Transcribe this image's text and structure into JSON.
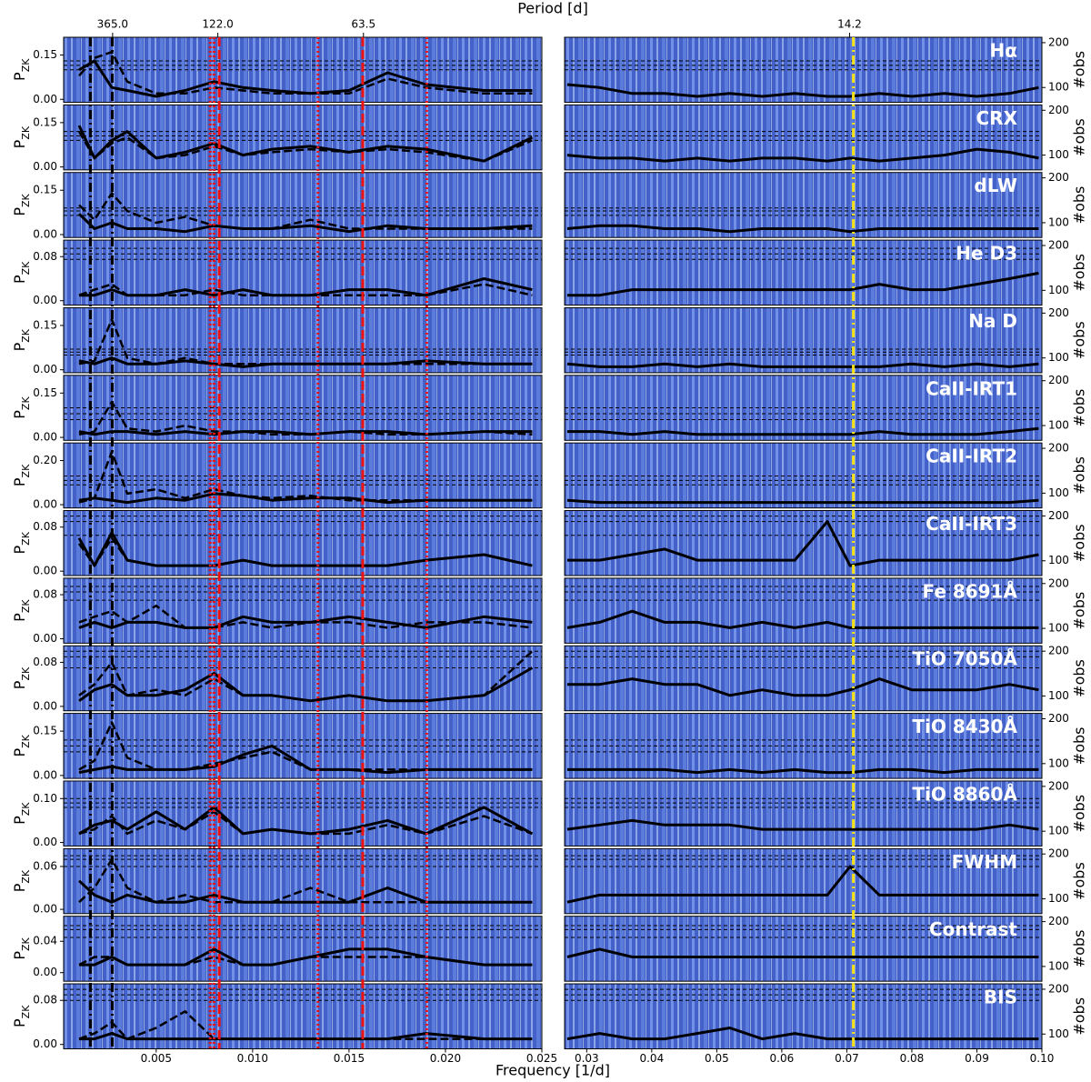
{
  "chart_data": {
    "type": "line",
    "x_label": "Frequency [1/d]",
    "top_label": "Period [d]",
    "y_label_main": "P",
    "y_label_sub": "ZK",
    "y2_label": "#obs",
    "left_xlim": [
      0.0002,
      0.025
    ],
    "right_xlim": [
      0.0266,
      0.1
    ],
    "left_xticks": [
      0.005,
      {
        "value": 0.01,
        "label": "0.010"
      },
      0.015,
      {
        "value": 0.02,
        "label": "0.020"
      },
      0.025
    ],
    "right_xticks": [
      0.03,
      0.04,
      0.05,
      0.06,
      0.07,
      0.08,
      0.09,
      {
        "value": 0.1,
        "label": "0.10"
      }
    ],
    "period_ticks": [
      {
        "value": 365,
        "label": "365.0"
      },
      {
        "value": 122,
        "label": "122.0"
      },
      63.5,
      14.2
    ],
    "y2lim": [
      67,
      212
    ],
    "y2ticks": [
      100,
      200
    ],
    "line_color": "#000000",
    "vlines": [
      {
        "x": 0.00159,
        "color": "#000000",
        "style": "dashdot"
      },
      {
        "x": 0.00272,
        "color": "#000000",
        "style": "dashdot"
      },
      {
        "x": 0.0078,
        "color": "#ee1111",
        "style": "dotted"
      },
      {
        "x": 0.008,
        "color": "#ee1111",
        "style": "dotted"
      },
      {
        "x": 0.00827,
        "color": "#ee1111",
        "style": "dashed"
      },
      {
        "x": 0.01339,
        "color": "#ee1111",
        "style": "dotted"
      },
      {
        "x": 0.01571,
        "color": "#ee1111",
        "style": "dashed"
      },
      {
        "x": 0.01903,
        "color": "#ee1111",
        "style": "dotted"
      },
      {
        "x": 0.071,
        "color": "#f2e01a",
        "style": "dashdot"
      }
    ],
    "left_x": [
      0.001,
      0.0018,
      0.0027,
      0.0035,
      0.005,
      0.0065,
      0.008,
      0.0095,
      0.011,
      0.013,
      0.015,
      0.017,
      0.019,
      0.022,
      0.0245
    ],
    "right_x": [
      0.027,
      0.032,
      0.037,
      0.042,
      0.047,
      0.052,
      0.057,
      0.062,
      0.067,
      0.0705,
      0.075,
      0.08,
      0.085,
      0.09,
      0.095,
      0.0995
    ],
    "panels": [
      {
        "label": "Hα",
        "ylim": [
          -0.01,
          0.21
        ],
        "yticks": [
          {
            "value": 0,
            "label": "0.00"
          },
          0.15
        ],
        "fap": [
          0.13,
          0.115,
          0.1
        ],
        "left_solid": [
          0.1,
          0.13,
          0.04,
          0.03,
          0.01,
          0.03,
          0.06,
          0.04,
          0.03,
          0.02,
          0.03,
          0.09,
          0.05,
          0.03,
          0.03
        ],
        "left_dashed": [
          0.08,
          0.14,
          0.16,
          0.06,
          0.02,
          0.02,
          0.04,
          0.03,
          0.02,
          0.02,
          0.02,
          0.07,
          0.04,
          0.02,
          0.02
        ],
        "right_solid": [
          0.05,
          0.04,
          0.02,
          0.02,
          0.01,
          0.02,
          0.01,
          0.02,
          0.01,
          0.01,
          0.02,
          0.01,
          0.02,
          0.01,
          0.02,
          0.04
        ]
      },
      {
        "label": "CRX",
        "ylim": [
          -0.01,
          0.21
        ],
        "yticks": [
          {
            "value": 0,
            "label": "0.00"
          },
          0.15
        ],
        "fap": [
          0.12,
          0.105,
          0.09
        ],
        "left_solid": [
          0.14,
          0.03,
          0.09,
          0.12,
          0.03,
          0.05,
          0.08,
          0.04,
          0.06,
          0.07,
          0.05,
          0.07,
          0.06,
          0.02,
          0.1
        ],
        "left_dashed": [
          0.12,
          0.03,
          0.08,
          0.1,
          0.03,
          0.04,
          0.07,
          0.04,
          0.05,
          0.06,
          0.05,
          0.06,
          0.05,
          0.02,
          0.09
        ],
        "right_solid": [
          0.04,
          0.03,
          0.03,
          0.02,
          0.03,
          0.02,
          0.03,
          0.03,
          0.02,
          0.03,
          0.02,
          0.03,
          0.04,
          0.06,
          0.05,
          0.03
        ]
      },
      {
        "label": "dLW",
        "ylim": [
          -0.01,
          0.21
        ],
        "yticks": [
          {
            "value": 0,
            "label": "0.00"
          },
          0.15
        ],
        "fap": [
          0.09,
          0.08,
          0.065
        ],
        "left_solid": [
          0.07,
          0.02,
          0.04,
          0.02,
          0.02,
          0.01,
          0.03,
          0.02,
          0.02,
          0.03,
          0.01,
          0.03,
          0.02,
          0.02,
          0.03
        ],
        "left_dashed": [
          0.1,
          0.05,
          0.14,
          0.08,
          0.04,
          0.06,
          0.03,
          0.02,
          0.02,
          0.05,
          0.02,
          0.02,
          0.02,
          0.02,
          0.02
        ],
        "right_solid": [
          0.02,
          0.03,
          0.03,
          0.02,
          0.02,
          0.01,
          0.02,
          0.02,
          0.02,
          0.01,
          0.02,
          0.02,
          0.02,
          0.02,
          0.02,
          0.02
        ]
      },
      {
        "label": "He D3",
        "ylim": [
          -0.008,
          0.11
        ],
        "yticks": [
          {
            "value": 0,
            "label": "0.00"
          },
          0.08
        ],
        "fap": [
          0.095,
          0.085,
          0.075
        ],
        "left_solid": [
          0.01,
          0.01,
          0.02,
          0.01,
          0.01,
          0.02,
          0.01,
          0.02,
          0.01,
          0.01,
          0.02,
          0.02,
          0.01,
          0.04,
          0.02
        ],
        "left_dashed": [
          0.01,
          0.02,
          0.03,
          0.01,
          0.01,
          0.01,
          0.02,
          0.01,
          0.01,
          0.01,
          0.01,
          0.01,
          0.01,
          0.03,
          0.01
        ],
        "right_solid": [
          0.01,
          0.01,
          0.02,
          0.02,
          0.02,
          0.02,
          0.02,
          0.02,
          0.02,
          0.02,
          0.03,
          0.02,
          0.02,
          0.03,
          0.04,
          0.05
        ]
      },
      {
        "label": "Na D",
        "ylim": [
          -0.01,
          0.21
        ],
        "yticks": [
          {
            "value": 0,
            "label": "0.00"
          },
          0.15
        ],
        "fap": [
          0.07,
          0.06,
          0.05
        ],
        "left_solid": [
          0.03,
          0.02,
          0.04,
          0.02,
          0.02,
          0.03,
          0.02,
          0.01,
          0.02,
          0.02,
          0.02,
          0.02,
          0.03,
          0.02,
          0.02
        ],
        "left_dashed": [
          0.02,
          0.03,
          0.17,
          0.04,
          0.02,
          0.04,
          0.02,
          0.02,
          0.02,
          0.02,
          0.02,
          0.02,
          0.02,
          0.02,
          0.02
        ],
        "right_solid": [
          0.02,
          0.01,
          0.01,
          0.02,
          0.01,
          0.02,
          0.01,
          0.01,
          0.01,
          0.01,
          0.01,
          0.02,
          0.01,
          0.02,
          0.01,
          0.02
        ]
      },
      {
        "label": "CaII-IRT1",
        "ylim": [
          -0.01,
          0.21
        ],
        "yticks": [
          {
            "value": 0,
            "label": "0.00"
          },
          0.15
        ],
        "fap": [
          0.1,
          0.08,
          0.06
        ],
        "left_solid": [
          0.02,
          0.01,
          0.02,
          0.02,
          0.01,
          0.02,
          0.01,
          0.02,
          0.02,
          0.01,
          0.02,
          0.02,
          0.01,
          0.02,
          0.02
        ],
        "left_dashed": [
          0.01,
          0.02,
          0.12,
          0.03,
          0.02,
          0.04,
          0.02,
          0.02,
          0.01,
          0.01,
          0.02,
          0.01,
          0.01,
          0.02,
          0.01
        ],
        "right_solid": [
          0.02,
          0.02,
          0.01,
          0.02,
          0.01,
          0.01,
          0.01,
          0.01,
          0.01,
          0.01,
          0.02,
          0.01,
          0.01,
          0.01,
          0.02,
          0.03
        ]
      },
      {
        "label": "CaII-IRT2",
        "ylim": [
          -0.015,
          0.28
        ],
        "yticks": [
          {
            "value": 0,
            "label": "0.00"
          },
          {
            "value": 0.2,
            "label": "0.20"
          }
        ],
        "fap": [
          0.13,
          0.11,
          0.09
        ],
        "left_solid": [
          0.02,
          0.03,
          0.02,
          0.01,
          0.03,
          0.02,
          0.05,
          0.04,
          0.02,
          0.03,
          0.03,
          0.01,
          0.02,
          0.02,
          0.02
        ],
        "left_dashed": [
          0.01,
          0.03,
          0.24,
          0.05,
          0.07,
          0.03,
          0.07,
          0.04,
          0.03,
          0.04,
          0.02,
          0.02,
          0.02,
          0.02,
          0.02
        ],
        "right_solid": [
          0.02,
          0.01,
          0.01,
          0.01,
          0.01,
          0.01,
          0.01,
          0.01,
          0.01,
          0.01,
          0.01,
          0.01,
          0.01,
          0.01,
          0.01,
          0.02
        ]
      },
      {
        "label": "CaII-IRT3",
        "ylim": [
          -0.008,
          0.11
        ],
        "yticks": [
          {
            "value": 0,
            "label": "0.00"
          },
          0.08
        ],
        "fap": [
          0.1,
          0.09,
          0.065
        ],
        "left_solid": [
          0.06,
          0.01,
          0.07,
          0.02,
          0.01,
          0.01,
          0.01,
          0.02,
          0.01,
          0.01,
          0.01,
          0.01,
          0.02,
          0.03,
          0.01
        ],
        "left_dashed": [
          0.05,
          0.01,
          0.06,
          0.02,
          0.01,
          0.01,
          0.01,
          0.02,
          0.01,
          0.01,
          0.01,
          0.01,
          0.02,
          0.03,
          0.01
        ],
        "right_solid": [
          0.02,
          0.02,
          0.03,
          0.04,
          0.02,
          0.02,
          0.02,
          0.02,
          0.09,
          0.01,
          0.02,
          0.02,
          0.02,
          0.02,
          0.02,
          0.03
        ]
      },
      {
        "label": "Fe 8691Å",
        "ylim": [
          -0.008,
          0.11
        ],
        "yticks": [
          {
            "value": 0,
            "label": "0.00"
          },
          0.08
        ],
        "fap": [
          0.095,
          0.085,
          0.07
        ],
        "left_solid": [
          0.02,
          0.03,
          0.02,
          0.03,
          0.03,
          0.02,
          0.02,
          0.04,
          0.03,
          0.03,
          0.04,
          0.03,
          0.02,
          0.04,
          0.03
        ],
        "left_dashed": [
          0.03,
          0.04,
          0.05,
          0.03,
          0.06,
          0.02,
          0.02,
          0.03,
          0.02,
          0.03,
          0.03,
          0.02,
          0.03,
          0.03,
          0.02
        ],
        "right_solid": [
          0.02,
          0.03,
          0.05,
          0.03,
          0.03,
          0.02,
          0.03,
          0.02,
          0.03,
          0.02,
          0.02,
          0.02,
          0.02,
          0.02,
          0.02,
          0.02
        ]
      },
      {
        "label": "TiO 7050Å",
        "ylim": [
          -0.008,
          0.11
        ],
        "yticks": [
          {
            "value": 0,
            "label": "0.00"
          },
          0.08
        ],
        "fap": [
          0.1,
          0.09,
          0.07
        ],
        "left_solid": [
          0.01,
          0.03,
          0.04,
          0.02,
          0.02,
          0.03,
          0.06,
          0.02,
          0.02,
          0.01,
          0.02,
          0.01,
          0.01,
          0.02,
          0.07
        ],
        "left_dashed": [
          0.02,
          0.04,
          0.08,
          0.02,
          0.03,
          0.02,
          0.05,
          0.02,
          0.02,
          0.01,
          0.02,
          0.01,
          0.01,
          0.02,
          0.1
        ],
        "right_solid": [
          0.04,
          0.04,
          0.05,
          0.04,
          0.04,
          0.02,
          0.03,
          0.02,
          0.02,
          0.03,
          0.05,
          0.03,
          0.03,
          0.03,
          0.04,
          0.03
        ]
      },
      {
        "label": "TiO 8430Å",
        "ylim": [
          -0.01,
          0.21
        ],
        "yticks": [
          {
            "value": 0,
            "label": "0.00"
          },
          0.15
        ],
        "fap": [
          0.12,
          0.1,
          0.08
        ],
        "left_solid": [
          0.01,
          0.02,
          0.03,
          0.02,
          0.02,
          0.02,
          0.03,
          0.07,
          0.1,
          0.02,
          0.02,
          0.01,
          0.02,
          0.02,
          0.02
        ],
        "left_dashed": [
          0.02,
          0.05,
          0.18,
          0.06,
          0.02,
          0.02,
          0.04,
          0.06,
          0.08,
          0.02,
          0.02,
          0.02,
          0.02,
          0.02,
          0.02
        ],
        "right_solid": [
          0.02,
          0.02,
          0.02,
          0.02,
          0.01,
          0.02,
          0.01,
          0.02,
          0.01,
          0.01,
          0.02,
          0.02,
          0.01,
          0.02,
          0.02,
          0.02
        ]
      },
      {
        "label": "TiO 8860Å",
        "ylim": [
          -0.008,
          0.14
        ],
        "yticks": [
          {
            "value": 0,
            "label": "0.00"
          },
          {
            "value": 0.1,
            "label": "0.10"
          }
        ],
        "fap": [
          0.1,
          0.09,
          0.08
        ],
        "left_solid": [
          0.02,
          0.04,
          0.05,
          0.03,
          0.07,
          0.03,
          0.08,
          0.02,
          0.03,
          0.02,
          0.03,
          0.05,
          0.02,
          0.08,
          0.02
        ],
        "left_dashed": [
          0.02,
          0.03,
          0.06,
          0.02,
          0.05,
          0.03,
          0.07,
          0.02,
          0.03,
          0.02,
          0.02,
          0.04,
          0.02,
          0.06,
          0.02
        ],
        "right_solid": [
          0.03,
          0.04,
          0.05,
          0.04,
          0.04,
          0.04,
          0.03,
          0.03,
          0.03,
          0.03,
          0.03,
          0.03,
          0.03,
          0.03,
          0.04,
          0.03
        ]
      },
      {
        "label": "FWHM",
        "ylim": [
          -0.006,
          0.085
        ],
        "yticks": [
          {
            "value": 0,
            "label": "0.00"
          },
          0.06
        ],
        "fap": [
          0.075,
          0.07,
          0.06
        ],
        "left_solid": [
          0.04,
          0.02,
          0.01,
          0.02,
          0.01,
          0.01,
          0.02,
          0.01,
          0.01,
          0.01,
          0.01,
          0.03,
          0.01,
          0.01,
          0.01
        ],
        "left_dashed": [
          0.01,
          0.03,
          0.07,
          0.03,
          0.01,
          0.02,
          0.01,
          0.01,
          0.01,
          0.03,
          0.01,
          0.01,
          0.01,
          0.01,
          0.01
        ],
        "right_solid": [
          0.01,
          0.02,
          0.02,
          0.02,
          0.02,
          0.02,
          0.02,
          0.02,
          0.02,
          0.06,
          0.02,
          0.02,
          0.02,
          0.02,
          0.02,
          0.02
        ]
      },
      {
        "label": "Contrast",
        "ylim": [
          -0.011,
          0.072
        ],
        "yticks": [
          {
            "value": 0,
            "label": "0.00"
          },
          0.04
        ],
        "fap": [
          0.06,
          0.055,
          0.045
        ],
        "left_solid": [
          0.01,
          0.01,
          0.02,
          0.01,
          0.01,
          0.01,
          0.03,
          0.01,
          0.01,
          0.02,
          0.03,
          0.03,
          0.02,
          0.01,
          0.01
        ],
        "left_dashed": [
          0.01,
          0.02,
          0.02,
          0.01,
          0.01,
          0.01,
          0.02,
          0.01,
          0.01,
          0.02,
          0.02,
          0.02,
          0.02,
          0.01,
          0.01
        ],
        "right_solid": [
          0.02,
          0.03,
          0.02,
          0.02,
          0.02,
          0.02,
          0.02,
          0.02,
          0.02,
          0.02,
          0.02,
          0.02,
          0.02,
          0.02,
          0.02,
          0.02
        ]
      },
      {
        "label": "BIS",
        "ylim": [
          -0.008,
          0.11
        ],
        "yticks": [
          {
            "value": 0,
            "label": "0.00"
          },
          0.08
        ],
        "fap": [
          0.1,
          0.09,
          0.08
        ],
        "left_solid": [
          0.01,
          0.01,
          0.02,
          0.01,
          0.01,
          0.01,
          0.01,
          0.01,
          0.01,
          0.01,
          0.01,
          0.01,
          0.02,
          0.01,
          0.01
        ],
        "left_dashed": [
          0.01,
          0.02,
          0.04,
          0.01,
          0.03,
          0.06,
          0.01,
          0.01,
          0.01,
          0.01,
          0.01,
          0.01,
          0.01,
          0.01,
          0.01
        ],
        "right_solid": [
          0.01,
          0.02,
          0.01,
          0.01,
          0.02,
          0.03,
          0.01,
          0.02,
          0.01,
          0.01,
          0.01,
          0.01,
          0.01,
          0.01,
          0.01,
          0.01
        ]
      }
    ]
  }
}
